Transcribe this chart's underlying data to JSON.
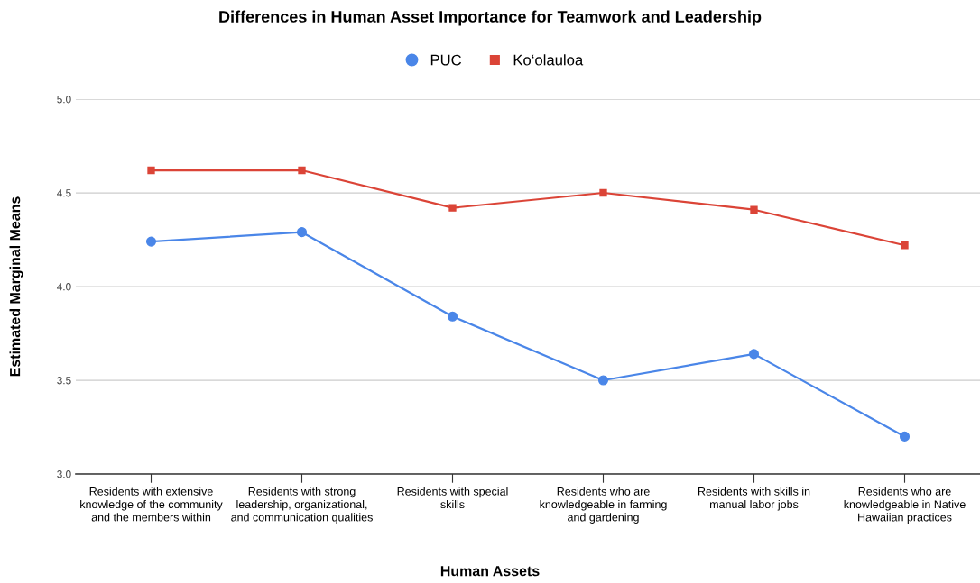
{
  "chart_data": {
    "type": "line",
    "title": "Differences in Human Asset Importance for Teamwork and Leadership",
    "xlabel": "Human Assets",
    "ylabel": "Estimated Marginal Means",
    "categories": [
      "Residents with extensive knowledge of the community and the members within",
      "Residents with strong leadership, organizational, and communication qualities",
      "Residents with special skills",
      "Residents who are knowledgeable in farming and gardening",
      "Residents with skills in manual labor jobs",
      "Residents who are knowledgeable in Native Hawaiian practices"
    ],
    "series": [
      {
        "name": "PUC",
        "color": "#4a86e8",
        "marker": "circle",
        "values": [
          4.24,
          4.29,
          3.84,
          3.5,
          3.64,
          3.2
        ]
      },
      {
        "name": "Ko‘olauloa",
        "color": "#db4437",
        "marker": "square",
        "values": [
          4.62,
          4.62,
          4.42,
          4.5,
          4.41,
          4.22
        ]
      }
    ],
    "ylim": [
      3.0,
      5.0
    ],
    "yticks": [
      {
        "value": 3.0,
        "label": "3.0"
      },
      {
        "value": 3.5,
        "label": "3.5"
      },
      {
        "value": 4.0,
        "label": "4.0"
      },
      {
        "value": 4.5,
        "label": "4.5"
      },
      {
        "value": 5.0,
        "label": "5.0"
      }
    ],
    "grid": "y",
    "legend": "top",
    "line_style": "solid"
  }
}
